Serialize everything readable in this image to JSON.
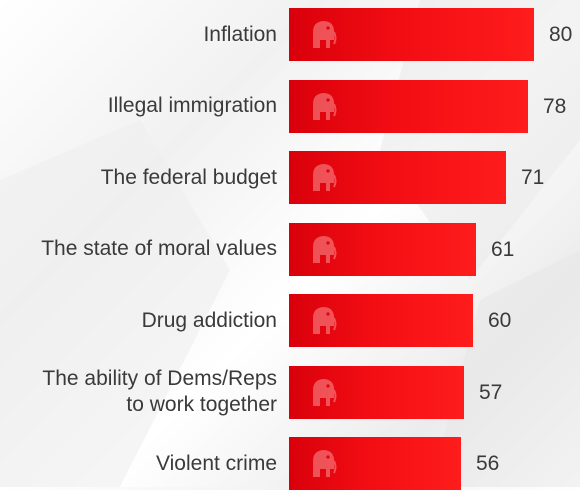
{
  "chart_data": {
    "type": "bar",
    "orientation": "horizontal",
    "categories": [
      "Inflation",
      "Illegal immigration",
      "The federal budget",
      "The state of moral values",
      "Drug addiction",
      "The ability of Dems/Reps to work together",
      "Violent crime"
    ],
    "category_lines": [
      [
        "Inflation"
      ],
      [
        "Illegal immigration"
      ],
      [
        "The federal budget"
      ],
      [
        "The state of moral values"
      ],
      [
        "Drug addiction"
      ],
      [
        "The ability of Dems/Reps",
        "to work together"
      ],
      [
        "Violent crime"
      ]
    ],
    "values": [
      80,
      78,
      71,
      61,
      60,
      57,
      56
    ],
    "bar_color": "#f20d13",
    "bar_icon": "elephant-icon",
    "grid": false,
    "legend": false
  }
}
